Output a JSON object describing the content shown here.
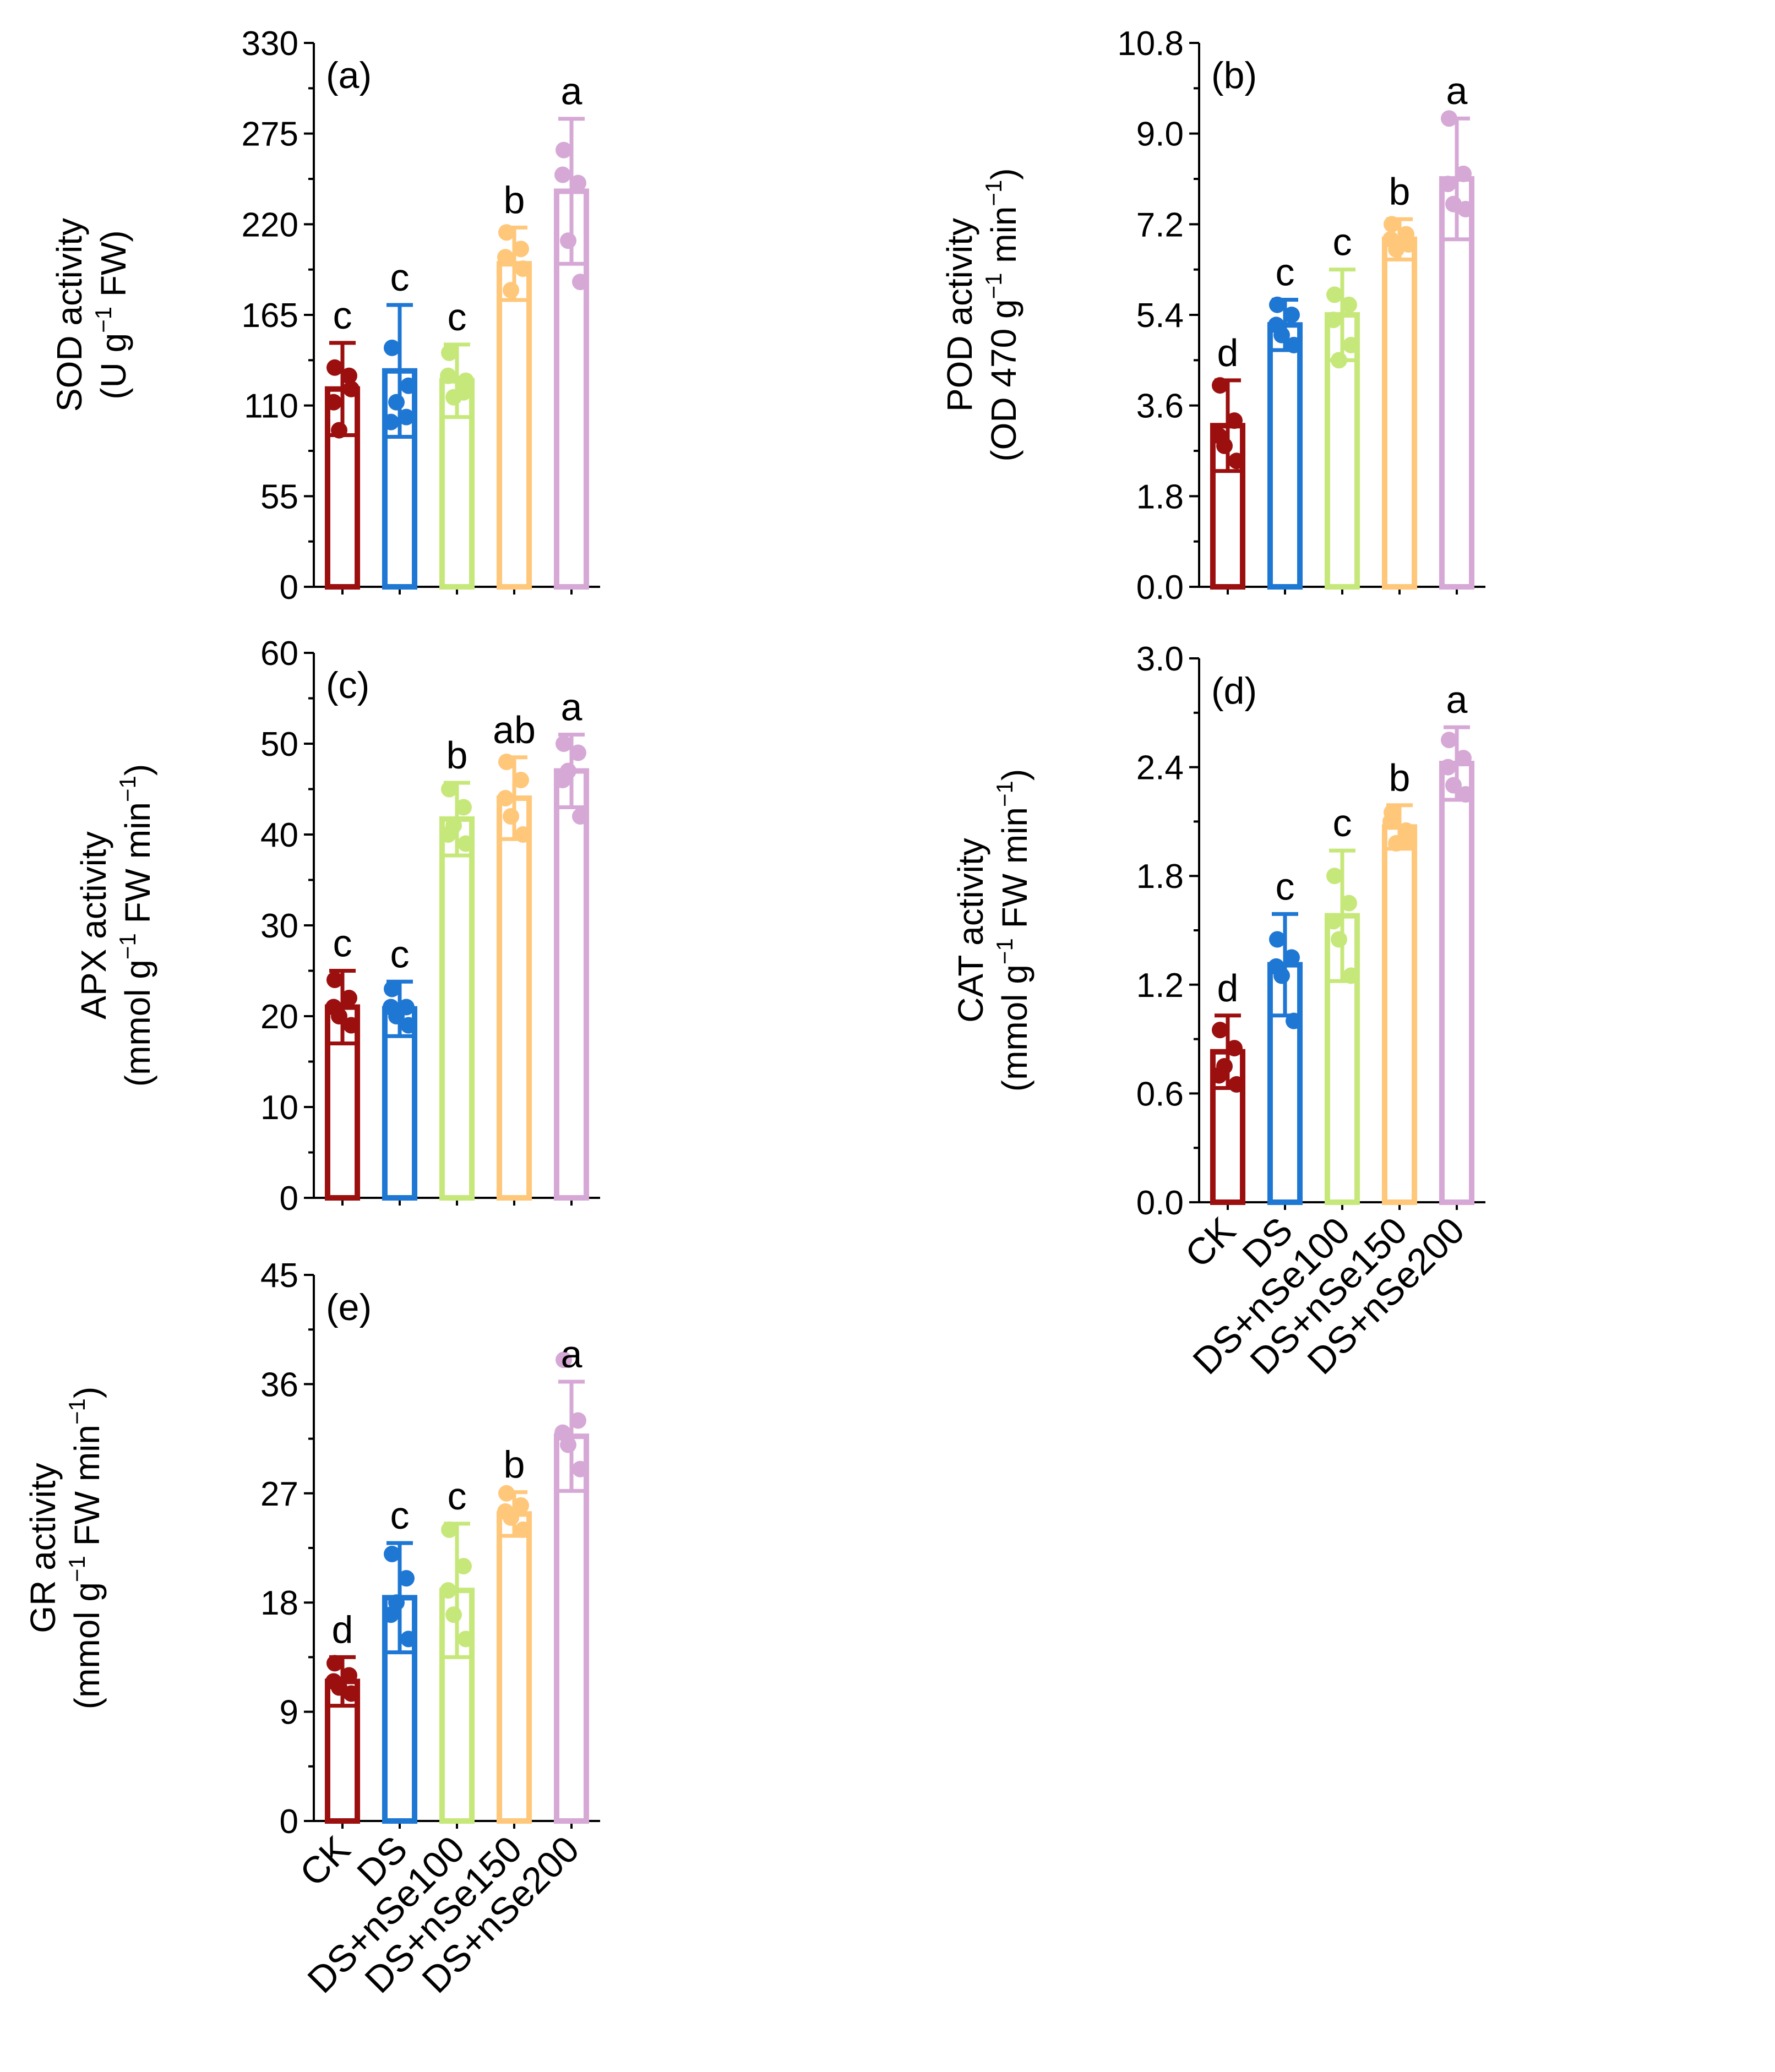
{
  "figure": {
    "colors": {
      "CK": "#9b0f0f",
      "DS": "#1f77d4",
      "DS+nSe100": "#c6e87a",
      "DS+nSe150": "#ffc77a",
      "DS+nSe200": "#d6a8d6"
    }
  },
  "chart_data": [
    {
      "type": "bar",
      "panel": "(a)",
      "ylabel_line1": "SOD activity",
      "ylabel_line2": "(U g",
      "ylabel_sup": "−1",
      "ylabel_tail": " FW)",
      "categories": [
        "CK",
        "DS",
        "DS+nSe100",
        "DS+nSe150",
        "DS+nSe200"
      ],
      "values": [
        120,
        131,
        125,
        196,
        240
      ],
      "errors": [
        28,
        40,
        22,
        22,
        44
      ],
      "points": [
        [
          133,
          128,
          95,
          120,
          112
        ],
        [
          145,
          103,
          112,
          122,
          100
        ],
        [
          142,
          118,
          115,
          125,
          128
        ],
        [
          215,
          205,
          180,
          193,
          200
        ],
        [
          265,
          245,
          210,
          185,
          250
        ]
      ],
      "letters": [
        "c",
        "c",
        "c",
        "b",
        "a"
      ],
      "ylim": [
        0,
        330
      ],
      "yticks": [
        "0",
        "55",
        "110",
        "165",
        "220",
        "275",
        "330"
      ]
    },
    {
      "type": "bar",
      "panel": "(b)",
      "ylabel_line1": "POD activity",
      "ylabel_line2": "(OD 470 g",
      "ylabel_sup": "−1",
      "ylabel_tail": " min",
      "ylabel_sup2": "−1",
      "ylabel_close": ")",
      "categories": [
        "CK",
        "DS",
        "DS+nSe100",
        "DS+nSe150",
        "DS+nSe200"
      ],
      "values": [
        3.2,
        5.2,
        5.4,
        6.9,
        8.1
      ],
      "errors": [
        0.9,
        0.5,
        0.9,
        0.4,
        1.2
      ],
      "points": [
        [
          4.0,
          3.3,
          2.8,
          2.5,
          3.0
        ],
        [
          5.6,
          5.4,
          5.0,
          4.8,
          5.2
        ],
        [
          5.8,
          5.6,
          4.5,
          4.8,
          5.3
        ],
        [
          7.2,
          7.0,
          6.7,
          6.8,
          6.9
        ],
        [
          9.3,
          8.2,
          7.6,
          7.5,
          8.0
        ]
      ],
      "letters": [
        "d",
        "c",
        "c",
        "b",
        "a"
      ],
      "ylim": [
        0,
        10.8
      ],
      "yticks": [
        "0.0",
        "1.8",
        "3.6",
        "5.4",
        "7.2",
        "9.0",
        "10.8"
      ]
    },
    {
      "type": "bar",
      "panel": "(c)",
      "ylabel_line1": "APX activity",
      "ylabel_line2": "(mmol g",
      "ylabel_sup": "−1",
      "ylabel_tail": " FW min",
      "ylabel_sup2": "−1",
      "ylabel_close": ")",
      "categories": [
        "CK",
        "DS",
        "DS+nSe100",
        "DS+nSe150",
        "DS+nSe200"
      ],
      "values": [
        21,
        20.8,
        41.7,
        44,
        47
      ],
      "errors": [
        4,
        3,
        4,
        4.5,
        4
      ],
      "points": [
        [
          24,
          22,
          20,
          19,
          21
        ],
        [
          23,
          21,
          20,
          19,
          21
        ],
        [
          45,
          43,
          41,
          39,
          40
        ],
        [
          48,
          46,
          42,
          40,
          44
        ],
        [
          50,
          49,
          47,
          42,
          46
        ]
      ],
      "letters": [
        "c",
        "c",
        "b",
        "ab",
        "a"
      ],
      "ylim": [
        0,
        60
      ],
      "yticks": [
        "0",
        "10",
        "20",
        "30",
        "40",
        "50",
        "60"
      ]
    },
    {
      "type": "bar",
      "panel": "(d)",
      "ylabel_line1": "CAT activity",
      "ylabel_line2": "(mmol g",
      "ylabel_sup": "−1",
      "ylabel_tail": " FW min",
      "ylabel_sup2": "−1",
      "ylabel_close": ")",
      "categories": [
        "CK",
        "DS",
        "DS+nSe100",
        "DS+nSe150",
        "DS+nSe200"
      ],
      "values": [
        0.83,
        1.31,
        1.58,
        2.07,
        2.42
      ],
      "errors": [
        0.2,
        0.28,
        0.36,
        0.12,
        0.2
      ],
      "points": [
        [
          0.95,
          0.85,
          0.75,
          0.65,
          0.7
        ],
        [
          1.45,
          1.35,
          1.25,
          1.0,
          1.3
        ],
        [
          1.8,
          1.65,
          1.45,
          1.25,
          1.55
        ],
        [
          2.15,
          2.05,
          1.98,
          2.0,
          2.1
        ],
        [
          2.55,
          2.45,
          2.3,
          2.25,
          2.4
        ]
      ],
      "letters": [
        "d",
        "c",
        "c",
        "b",
        "a"
      ],
      "ylim": [
        0,
        3.0
      ],
      "yticks": [
        "0.0",
        "0.6",
        "1.2",
        "1.8",
        "2.4",
        "3.0"
      ]
    },
    {
      "type": "bar",
      "panel": "(e)",
      "ylabel_line1": "GR activity",
      "ylabel_line2": "(mmol g",
      "ylabel_sup": "−1",
      "ylabel_tail": " FW min",
      "ylabel_sup2": "−1",
      "ylabel_close": ")",
      "categories": [
        "CK",
        "DS",
        "DS+nSe100",
        "DS+nSe150",
        "DS+nSe200"
      ],
      "values": [
        11.5,
        18.4,
        19,
        25.3,
        31.7
      ],
      "errors": [
        2,
        4.5,
        5.5,
        1.8,
        4.5
      ],
      "points": [
        [
          13,
          12,
          11,
          10.5,
          11.5
        ],
        [
          22,
          20,
          18,
          15,
          17
        ],
        [
          24,
          21,
          17,
          15,
          19
        ],
        [
          27,
          26,
          25,
          24,
          25.5
        ],
        [
          38,
          33,
          31,
          29,
          32
        ]
      ],
      "letters": [
        "d",
        "c",
        "c",
        "b",
        "a"
      ],
      "ylim": [
        0,
        45
      ],
      "yticks": [
        "0",
        "9",
        "18",
        "27",
        "36",
        "45"
      ]
    }
  ]
}
